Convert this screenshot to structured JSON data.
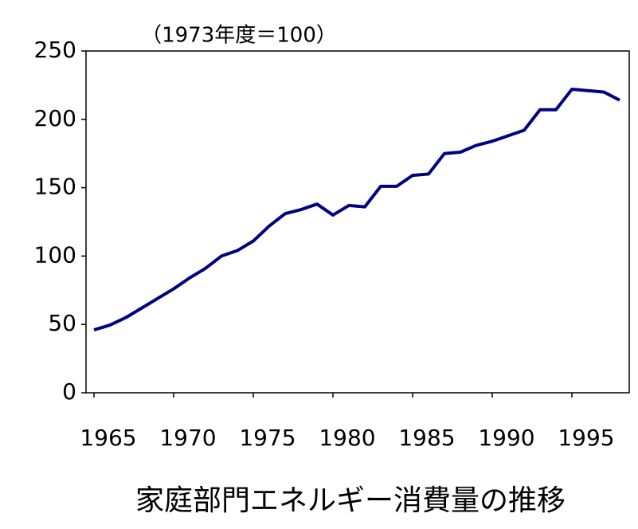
{
  "chart_data": {
    "type": "line",
    "title": "家庭部門エネルギー消費量の推移",
    "annotation": "（1973年度＝100）",
    "x": [
      1965,
      1966,
      1967,
      1968,
      1969,
      1970,
      1971,
      1972,
      1973,
      1974,
      1975,
      1976,
      1977,
      1978,
      1979,
      1980,
      1981,
      1982,
      1983,
      1984,
      1985,
      1986,
      1987,
      1988,
      1989,
      1990,
      1991,
      1992,
      1993,
      1994,
      1995,
      1996,
      1997,
      1998
    ],
    "series": [
      {
        "name": "家庭部門エネルギー消費量",
        "color": "#000080",
        "values": [
          46,
          49.5,
          55,
          62,
          69,
          76,
          84,
          91,
          100,
          104,
          111,
          122,
          131,
          134,
          138,
          130,
          137,
          136,
          151,
          151,
          159,
          160,
          175,
          176,
          181,
          184,
          188,
          192,
          207,
          207,
          222,
          221,
          220,
          214
        ]
      }
    ],
    "xlim": [
      1964.5,
      1998.6
    ],
    "xticks": [
      1965,
      1970,
      1975,
      1980,
      1985,
      1990,
      1995
    ],
    "ylim": [
      0,
      250
    ],
    "yticks": [
      0,
      50,
      100,
      150,
      200,
      250
    ],
    "grid": false
  }
}
